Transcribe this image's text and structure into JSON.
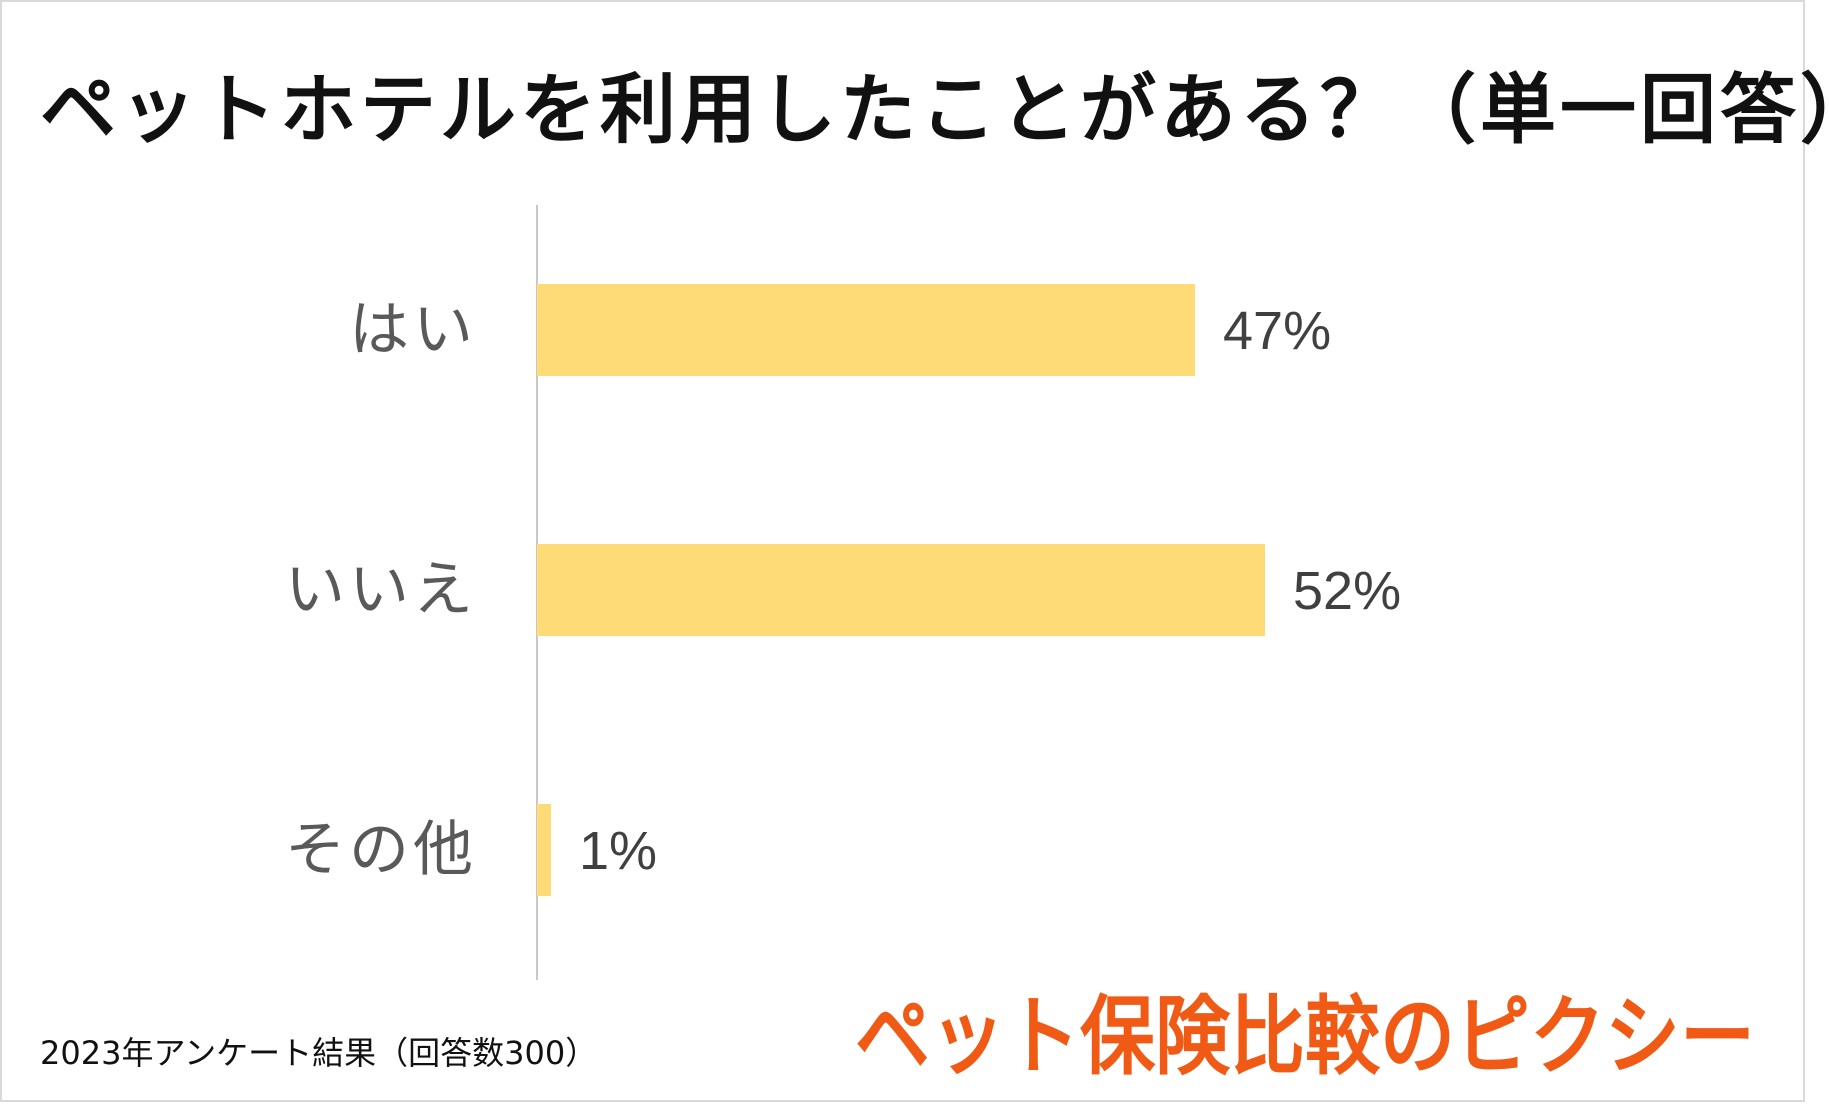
{
  "title": "ペットホテルを利用したことがある？（単一回答）",
  "footnote": "2023年アンケート結果（回答数300）",
  "brand": {
    "text": "ペット保険比較のピクシー",
    "color": "#f05a14"
  },
  "colors": {
    "bar": "#fedb76",
    "axis": "#c8c8c8",
    "category_label": "#595959",
    "value_label": "#404040"
  },
  "chart_data": {
    "type": "bar",
    "orientation": "horizontal",
    "title": "ペットホテルを利用したことがある？（単一回答）",
    "categories": [
      "はい",
      "いいえ",
      "その他"
    ],
    "values": [
      47,
      52,
      1
    ],
    "value_labels": [
      "47%",
      "52%",
      "1%"
    ],
    "unit": "%",
    "xlim": [
      0,
      100
    ],
    "grid": false,
    "legend": "none"
  }
}
